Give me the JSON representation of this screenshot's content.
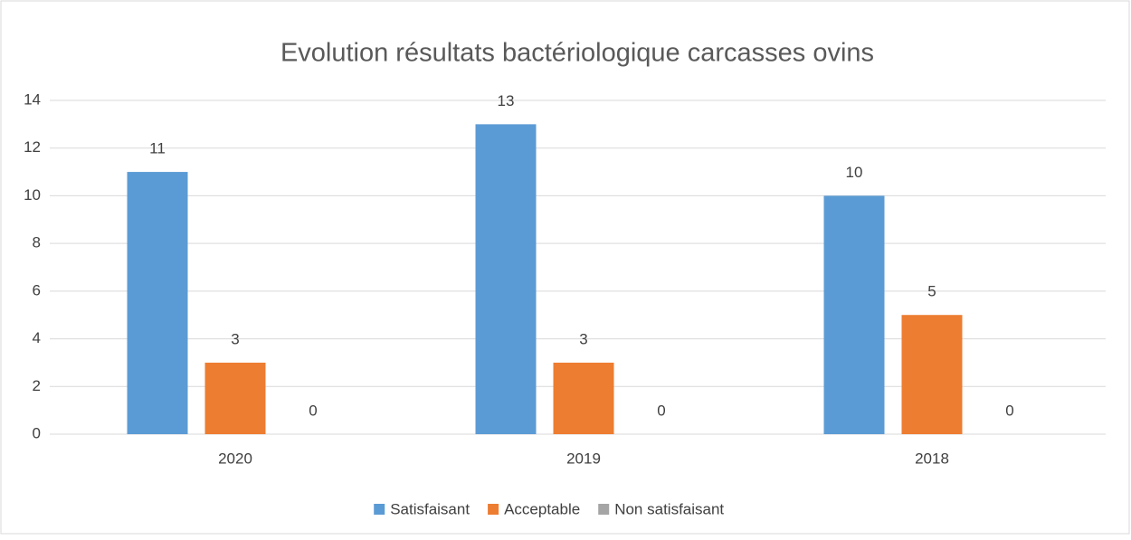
{
  "chart_data": {
    "type": "bar",
    "title": "Evolution résultats bactériologique carcasses ovins",
    "categories": [
      "2020",
      "2019",
      "2018"
    ],
    "series": [
      {
        "name": "Satisfaisant",
        "color": "#5b9bd5",
        "values": [
          11,
          13,
          10
        ]
      },
      {
        "name": "Acceptable",
        "color": "#ed7d31",
        "values": [
          3,
          3,
          5
        ]
      },
      {
        "name": "Non satisfaisant",
        "color": "#a5a5a5",
        "values": [
          0,
          0,
          0
        ]
      }
    ],
    "ylim": [
      0,
      14
    ],
    "yticks": [
      0,
      2,
      4,
      6,
      8,
      10,
      12,
      14
    ],
    "grid": true,
    "legend": "bottom",
    "data_labels": true
  }
}
